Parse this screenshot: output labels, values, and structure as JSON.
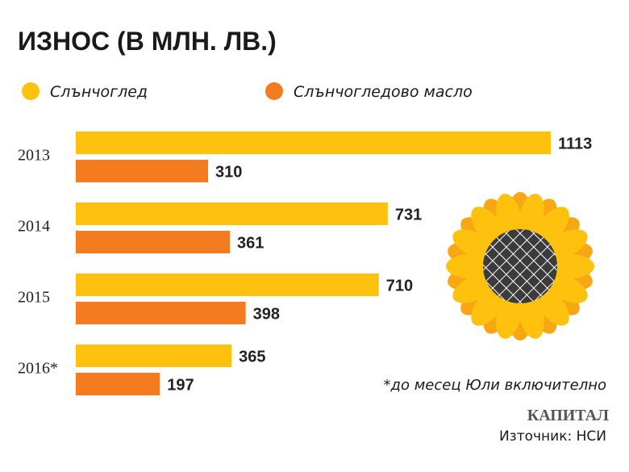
{
  "chart_data": {
    "type": "bar",
    "orientation": "horizontal",
    "title": "ИЗНОС (В МЛН. ЛВ.)",
    "categories": [
      "2013",
      "2014",
      "2015",
      "2016*"
    ],
    "series": [
      {
        "name": "Слънчоглед",
        "color": "#fdc10e",
        "values": [
          1113,
          731,
          710,
          365
        ]
      },
      {
        "name": "Слънчогледово масло",
        "color": "#f47b20",
        "values": [
          310,
          361,
          398,
          197
        ]
      }
    ],
    "note": "*до месец Юли включително",
    "brand": "КАПИТАЛ",
    "source": "Източник: НСИ"
  }
}
